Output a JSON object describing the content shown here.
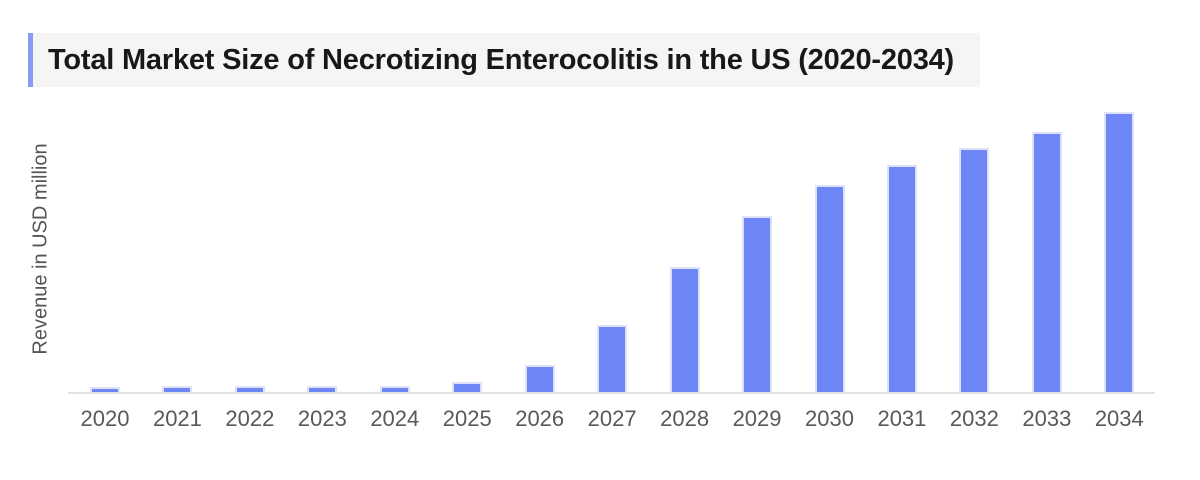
{
  "header": {
    "title": "Total Market Size of Necrotizing Enterocolitis in the US (2020-2034)",
    "accent_color": "#869cf0",
    "band_background": "#f5f5f6"
  },
  "chart_data": {
    "type": "bar",
    "title": "Total Market Size of Necrotizing Enterocolitis in the US (2020-2034)",
    "xlabel": "",
    "ylabel": "Revenue in USD million",
    "categories": [
      "2020",
      "2021",
      "2022",
      "2023",
      "2024",
      "2025",
      "2026",
      "2027",
      "2028",
      "2029",
      "2030",
      "2031",
      "2032",
      "2033",
      "2034"
    ],
    "values": [
      1.8,
      2.0,
      2.0,
      2.0,
      2.0,
      3.4,
      9.8,
      24.0,
      44.6,
      63.0,
      74.0,
      81.0,
      87.0,
      93.0,
      100.0
    ],
    "value_units": "relative (no y-axis scale shown; normalized to max = 100)",
    "ylim": [
      0,
      105
    ],
    "y_ticks_visible": false,
    "grid": false,
    "legend": false,
    "bar_color": "#6c86f5",
    "bar_edge_color": "#dde2fa",
    "axis_line_color": "#e3e3e7",
    "tick_label_color": "#58595c"
  }
}
